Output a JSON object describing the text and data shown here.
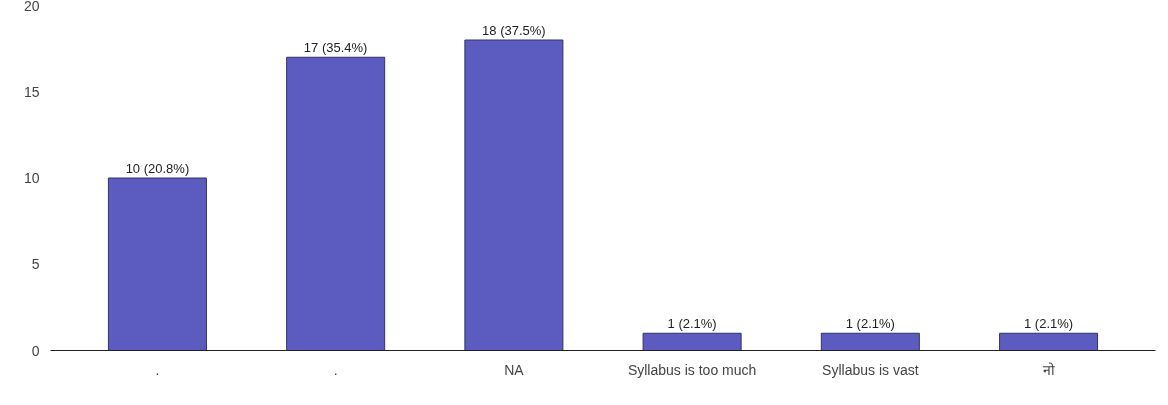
{
  "chart_data": {
    "type": "bar",
    "categories": [
      ".",
      ".",
      "NA",
      "Syllabus is too much",
      "Syllabus is vast",
      "नो"
    ],
    "values": [
      10,
      17,
      18,
      1,
      1,
      1
    ],
    "value_labels": [
      "10 (20.8%)",
      "17 (35.4%)",
      "18 (37.5%)",
      "1 (2.1%)",
      "1 (2.1%)",
      "1 (2.1%)"
    ],
    "color": "#5c5cc0",
    "ylim": [
      0,
      20
    ],
    "yticks": [
      0,
      5,
      10,
      15,
      20
    ],
    "grid": false
  }
}
